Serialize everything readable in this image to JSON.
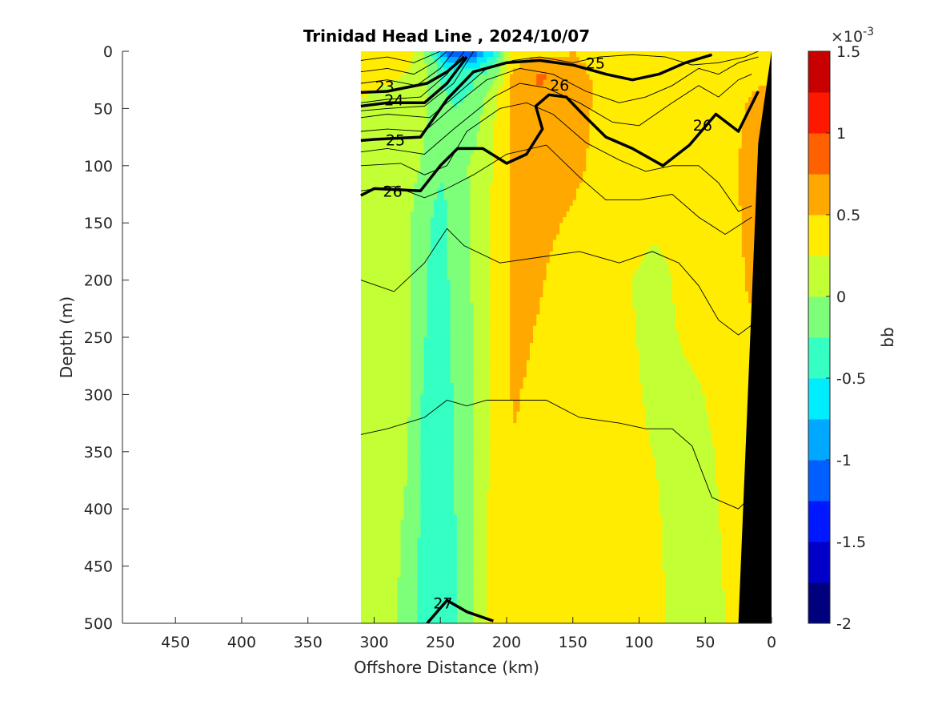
{
  "chart_data": {
    "type": "heatmap",
    "title": "Trinidad Head Line , 2024/10/07",
    "xlabel": "Offshore Distance (km)",
    "ylabel": "Depth (m)",
    "xlim": [
      490,
      0
    ],
    "ylim": [
      500,
      0
    ],
    "x_reversed": true,
    "y_reversed": true,
    "x_ticks": [
      "450",
      "400",
      "350",
      "300",
      "250",
      "200",
      "150",
      "100",
      "50",
      "0"
    ],
    "x_tick_values": [
      450,
      400,
      350,
      300,
      250,
      200,
      150,
      100,
      50,
      0
    ],
    "y_ticks": [
      "0",
      "50",
      "100",
      "150",
      "200",
      "250",
      "300",
      "350",
      "400",
      "450",
      "500"
    ],
    "y_tick_values": [
      0,
      50,
      100,
      150,
      200,
      250,
      300,
      350,
      400,
      450,
      500
    ],
    "data_extent_km": [
      310,
      0
    ],
    "colorbar": {
      "label": "bb",
      "exponent": "×10-3",
      "exponent_base": "×10",
      "exponent_power": "-3",
      "range": [
        -2,
        1.5
      ],
      "tick_labels": [
        "1.5",
        "1",
        "0.5",
        "0",
        "-0.5",
        "-1",
        "-1.5",
        "-2"
      ],
      "tick_values": [
        1.5,
        1,
        0.5,
        0,
        -0.5,
        -1,
        -1.5,
        -2
      ],
      "levels": [
        -2,
        -1.75,
        -1.5,
        -1.25,
        -1,
        -0.75,
        -0.5,
        -0.25,
        0,
        0.25,
        0.5,
        0.75,
        1,
        1.25,
        1.5
      ],
      "colors": [
        "#00007f",
        "#0000c9",
        "#0018ff",
        "#0060ff",
        "#00a8ff",
        "#00ecff",
        "#35ffc2",
        "#7dff7a",
        "#c2ff35",
        "#ffec00",
        "#ffa800",
        "#ff6000",
        "#ff1800",
        "#c90000"
      ]
    },
    "profiles": [
      {
        "x": 310,
        "bb": [
          [
            0,
            0.3
          ],
          [
            80,
            0.2
          ],
          [
            120,
            0.1
          ],
          [
            500,
            0.1
          ]
        ]
      },
      {
        "x": 290,
        "bb": [
          [
            0,
            0.3
          ],
          [
            60,
            0.2
          ],
          [
            120,
            0.1
          ],
          [
            500,
            0.1
          ]
        ]
      },
      {
        "x": 275,
        "bb": [
          [
            0,
            0.3
          ],
          [
            40,
            0.2
          ],
          [
            120,
            0.1
          ],
          [
            300,
            0.05
          ],
          [
            500,
            -0.1
          ]
        ]
      },
      {
        "x": 265,
        "bb": [
          [
            0,
            0.2
          ],
          [
            30,
            0.1
          ],
          [
            100,
            0.0
          ],
          [
            150,
            -0.2
          ],
          [
            500,
            -0.3
          ]
        ]
      },
      {
        "x": 250,
        "bb": [
          [
            0,
            -0.8
          ],
          [
            15,
            -0.3
          ],
          [
            60,
            -0.1
          ],
          [
            130,
            -0.3
          ],
          [
            500,
            -0.35
          ]
        ]
      },
      {
        "x": 240,
        "bb": [
          [
            0,
            -1.3
          ],
          [
            20,
            -0.4
          ],
          [
            80,
            -0.1
          ],
          [
            150,
            -0.2
          ],
          [
            500,
            -0.3
          ]
        ]
      },
      {
        "x": 225,
        "bb": [
          [
            0,
            -1.2
          ],
          [
            20,
            -0.3
          ],
          [
            100,
            0.05
          ],
          [
            300,
            0.0
          ],
          [
            500,
            0.0
          ]
        ]
      },
      {
        "x": 210,
        "bb": [
          [
            0,
            -0.5
          ],
          [
            40,
            0.2
          ],
          [
            150,
            0.3
          ],
          [
            500,
            0.35
          ]
        ]
      },
      {
        "x": 195,
        "bb": [
          [
            0,
            0.3
          ],
          [
            25,
            0.6
          ],
          [
            120,
            0.55
          ],
          [
            250,
            0.55
          ],
          [
            500,
            0.4
          ]
        ]
      },
      {
        "x": 175,
        "bb": [
          [
            0,
            0.4
          ],
          [
            20,
            0.8
          ],
          [
            60,
            0.6
          ],
          [
            150,
            0.55
          ],
          [
            300,
            0.45
          ],
          [
            500,
            0.4
          ]
        ]
      },
      {
        "x": 150,
        "bb": [
          [
            0,
            0.5
          ],
          [
            30,
            0.6
          ],
          [
            100,
            0.55
          ],
          [
            200,
            0.4
          ],
          [
            500,
            0.35
          ]
        ]
      },
      {
        "x": 120,
        "bb": [
          [
            0,
            0.4
          ],
          [
            100,
            0.4
          ],
          [
            200,
            0.3
          ],
          [
            500,
            0.3
          ]
        ]
      },
      {
        "x": 90,
        "bb": [
          [
            0,
            0.3
          ],
          [
            100,
            0.35
          ],
          [
            200,
            0.2
          ],
          [
            500,
            0.3
          ]
        ]
      },
      {
        "x": 60,
        "bb": [
          [
            0,
            0.3
          ],
          [
            200,
            0.3
          ],
          [
            350,
            0.2
          ],
          [
            500,
            0.15
          ]
        ]
      },
      {
        "x": 35,
        "bb": [
          [
            0,
            0.3
          ],
          [
            200,
            0.3
          ],
          [
            500,
            0.25
          ]
        ]
      },
      {
        "x": 20,
        "bb": [
          [
            0,
            0.4
          ],
          [
            100,
            0.6
          ],
          [
            200,
            0.5
          ],
          [
            500,
            0.3
          ]
        ]
      },
      {
        "x": 12,
        "bb": [
          [
            0,
            0.4
          ],
          [
            100,
            0.7
          ],
          [
            300,
            0.4
          ],
          [
            500,
            0.3
          ]
        ]
      }
    ],
    "contours": {
      "thin": [
        [
          [
            310,
            8
          ],
          [
            290,
            5
          ],
          [
            270,
            10
          ],
          [
            250,
            0
          ]
        ],
        [
          [
            310,
            18
          ],
          [
            290,
            15
          ],
          [
            270,
            20
          ],
          [
            255,
            10
          ],
          [
            245,
            0
          ]
        ],
        [
          [
            310,
            28
          ],
          [
            290,
            25
          ],
          [
            268,
            30
          ],
          [
            250,
            15
          ],
          [
            240,
            0
          ]
        ],
        [
          [
            310,
            45
          ],
          [
            290,
            42
          ],
          [
            265,
            40
          ],
          [
            245,
            20
          ],
          [
            232,
            0
          ]
        ],
        [
          [
            310,
            52
          ],
          [
            290,
            50
          ],
          [
            262,
            48
          ],
          [
            240,
            28
          ],
          [
            225,
            0
          ]
        ],
        [
          [
            310,
            58
          ],
          [
            290,
            55
          ],
          [
            258,
            58
          ],
          [
            235,
            35
          ],
          [
            215,
            15
          ],
          [
            195,
            8
          ],
          [
            175,
            5
          ],
          [
            150,
            10
          ],
          [
            130,
            5
          ],
          [
            105,
            3
          ],
          [
            80,
            5
          ],
          [
            60,
            12
          ],
          [
            40,
            10
          ],
          [
            20,
            5
          ],
          [
            10,
            0
          ]
        ],
        [
          [
            310,
            70
          ],
          [
            290,
            68
          ],
          [
            262,
            70
          ],
          [
            240,
            48
          ],
          [
            215,
            25
          ],
          [
            190,
            15
          ],
          [
            165,
            20
          ],
          [
            140,
            35
          ],
          [
            115,
            45
          ],
          [
            95,
            40
          ],
          [
            75,
            30
          ],
          [
            55,
            15
          ],
          [
            40,
            20
          ],
          [
            25,
            10
          ],
          [
            10,
            5
          ]
        ],
        [
          [
            310,
            88
          ],
          [
            290,
            85
          ],
          [
            262,
            90
          ],
          [
            240,
            68
          ],
          [
            210,
            40
          ],
          [
            190,
            28
          ],
          [
            170,
            32
          ],
          [
            145,
            45
          ],
          [
            120,
            62
          ],
          [
            100,
            65
          ],
          [
            75,
            45
          ],
          [
            55,
            30
          ],
          [
            40,
            40
          ],
          [
            25,
            25
          ],
          [
            15,
            20
          ]
        ],
        [
          [
            310,
            100
          ],
          [
            280,
            98
          ],
          [
            262,
            108
          ],
          [
            245,
            100
          ],
          [
            230,
            70
          ],
          [
            205,
            50
          ],
          [
            185,
            45
          ],
          [
            165,
            55
          ],
          [
            140,
            80
          ],
          [
            115,
            95
          ],
          [
            95,
            105
          ],
          [
            75,
            100
          ],
          [
            55,
            100
          ],
          [
            40,
            115
          ],
          [
            25,
            140
          ],
          [
            15,
            135
          ]
        ],
        [
          [
            310,
            122
          ],
          [
            285,
            118
          ],
          [
            262,
            128
          ],
          [
            245,
            120
          ],
          [
            225,
            108
          ],
          [
            200,
            90
          ],
          [
            170,
            82
          ],
          [
            145,
            110
          ],
          [
            125,
            130
          ],
          [
            100,
            130
          ],
          [
            75,
            125
          ],
          [
            55,
            145
          ],
          [
            35,
            160
          ],
          [
            15,
            145
          ]
        ],
        [
          [
            310,
            200
          ],
          [
            285,
            210
          ],
          [
            262,
            185
          ],
          [
            245,
            155
          ],
          [
            232,
            170
          ],
          [
            205,
            185
          ],
          [
            175,
            180
          ],
          [
            145,
            175
          ],
          [
            115,
            185
          ],
          [
            90,
            175
          ],
          [
            70,
            185
          ],
          [
            55,
            205
          ],
          [
            40,
            235
          ],
          [
            25,
            248
          ],
          [
            10,
            235
          ]
        ],
        [
          [
            310,
            335
          ],
          [
            290,
            330
          ],
          [
            262,
            320
          ],
          [
            245,
            305
          ],
          [
            230,
            310
          ],
          [
            215,
            305
          ],
          [
            195,
            305
          ],
          [
            170,
            305
          ],
          [
            145,
            320
          ],
          [
            115,
            325
          ],
          [
            95,
            330
          ],
          [
            75,
            330
          ],
          [
            60,
            345
          ],
          [
            45,
            390
          ],
          [
            25,
            400
          ],
          [
            12,
            385
          ]
        ]
      ],
      "thick": [
        {
          "label": "23",
          "pts": [
            [
              310,
              36
            ],
            [
              290,
              35
            ],
            [
              260,
              28
            ],
            [
              245,
              18
            ],
            [
              232,
              5
            ]
          ]
        },
        {
          "label": "24",
          "pts": [
            [
              310,
              48
            ],
            [
              290,
              45
            ],
            [
              262,
              45
            ],
            [
              245,
              28
            ],
            [
              230,
              5
            ]
          ]
        },
        {
          "label": "25",
          "pts": [
            [
              310,
              78
            ],
            [
              300,
              77
            ],
            [
              265,
              75
            ],
            [
              245,
              42
            ],
            [
              225,
              18
            ],
            [
              200,
              10
            ],
            [
              175,
              8
            ],
            [
              150,
              12
            ],
            [
              125,
              20
            ],
            [
              105,
              25
            ],
            [
              85,
              20
            ],
            [
              65,
              10
            ],
            [
              45,
              3
            ]
          ]
        },
        {
          "label": "26",
          "pts": [
            [
              310,
              126
            ],
            [
              300,
              120
            ],
            [
              265,
              122
            ],
            [
              250,
              100
            ],
            [
              237,
              85
            ],
            [
              218,
              85
            ],
            [
              200,
              98
            ],
            [
              185,
              90
            ],
            [
              173,
              68
            ],
            [
              178,
              48
            ],
            [
              168,
              38
            ],
            [
              155,
              40
            ],
            [
              140,
              58
            ],
            [
              125,
              75
            ],
            [
              105,
              85
            ],
            [
              82,
              100
            ],
            [
              62,
              82
            ],
            [
              42,
              55
            ],
            [
              25,
              70
            ],
            [
              10,
              35
            ]
          ]
        },
        {
          "label": "27",
          "pts": [
            [
              260,
              500
            ],
            [
              245,
              480
            ],
            [
              230,
              490
            ],
            [
              210,
              498
            ]
          ]
        }
      ],
      "labels": [
        {
          "text": "23",
          "x": 292,
          "y": 31
        },
        {
          "text": "24",
          "x": 285,
          "y": 43
        },
        {
          "text": "25",
          "x": 284,
          "y": 78
        },
        {
          "text": "25",
          "x": 133,
          "y": 11
        },
        {
          "text": "26",
          "x": 160,
          "y": 30
        },
        {
          "text": "26",
          "x": 286,
          "y": 123
        },
        {
          "text": "26",
          "x": 52,
          "y": 65
        },
        {
          "text": "27",
          "x": 248,
          "y": 483
        }
      ]
    },
    "bathymetry": {
      "color": "#000000",
      "shelf_edge_km": [
        [
          25,
          500
        ],
        [
          10,
          80
        ],
        [
          0,
          0
        ]
      ]
    },
    "grid": false,
    "legend": "colorbar-right"
  }
}
